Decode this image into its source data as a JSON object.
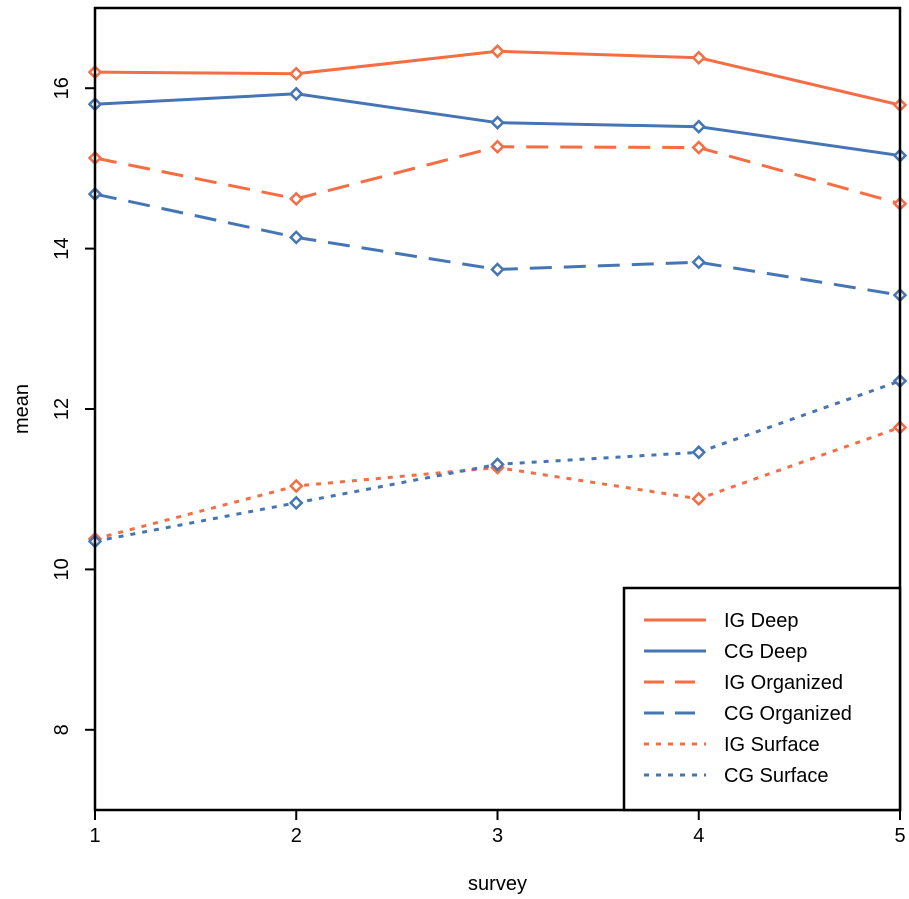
{
  "chart_data": {
    "type": "line",
    "xlabel": "survey",
    "ylabel": "mean",
    "x": [
      1,
      2,
      3,
      4,
      5
    ],
    "xlim": [
      1,
      5
    ],
    "ylim": [
      7,
      17
    ],
    "xticks": [
      "1",
      "2",
      "3",
      "4",
      "5"
    ],
    "yticks": [
      "8",
      "10",
      "12",
      "14",
      "16"
    ],
    "grid": false,
    "legend_position": "bottom-right",
    "series": [
      {
        "name": "IG Deep",
        "values": [
          16.2,
          16.18,
          16.46,
          16.38,
          15.79
        ],
        "color": "#f46d43",
        "linestyle": "solid"
      },
      {
        "name": "CG Deep",
        "values": [
          15.8,
          15.93,
          15.57,
          15.52,
          15.16
        ],
        "color": "#4575b4",
        "linestyle": "solid"
      },
      {
        "name": "IG Organized",
        "values": [
          15.13,
          14.62,
          15.27,
          15.26,
          14.56
        ],
        "color": "#f46d43",
        "linestyle": "dashed"
      },
      {
        "name": "CG Organized",
        "values": [
          14.68,
          14.14,
          13.74,
          13.83,
          13.42
        ],
        "color": "#4575b4",
        "linestyle": "dashed"
      },
      {
        "name": "IG Surface",
        "values": [
          10.38,
          11.04,
          11.27,
          10.88,
          11.77
        ],
        "color": "#f46d43",
        "linestyle": "dotted"
      },
      {
        "name": "CG Surface",
        "values": [
          10.35,
          10.83,
          11.31,
          11.46,
          12.35
        ],
        "color": "#4575b4",
        "linestyle": "dotted"
      }
    ]
  }
}
